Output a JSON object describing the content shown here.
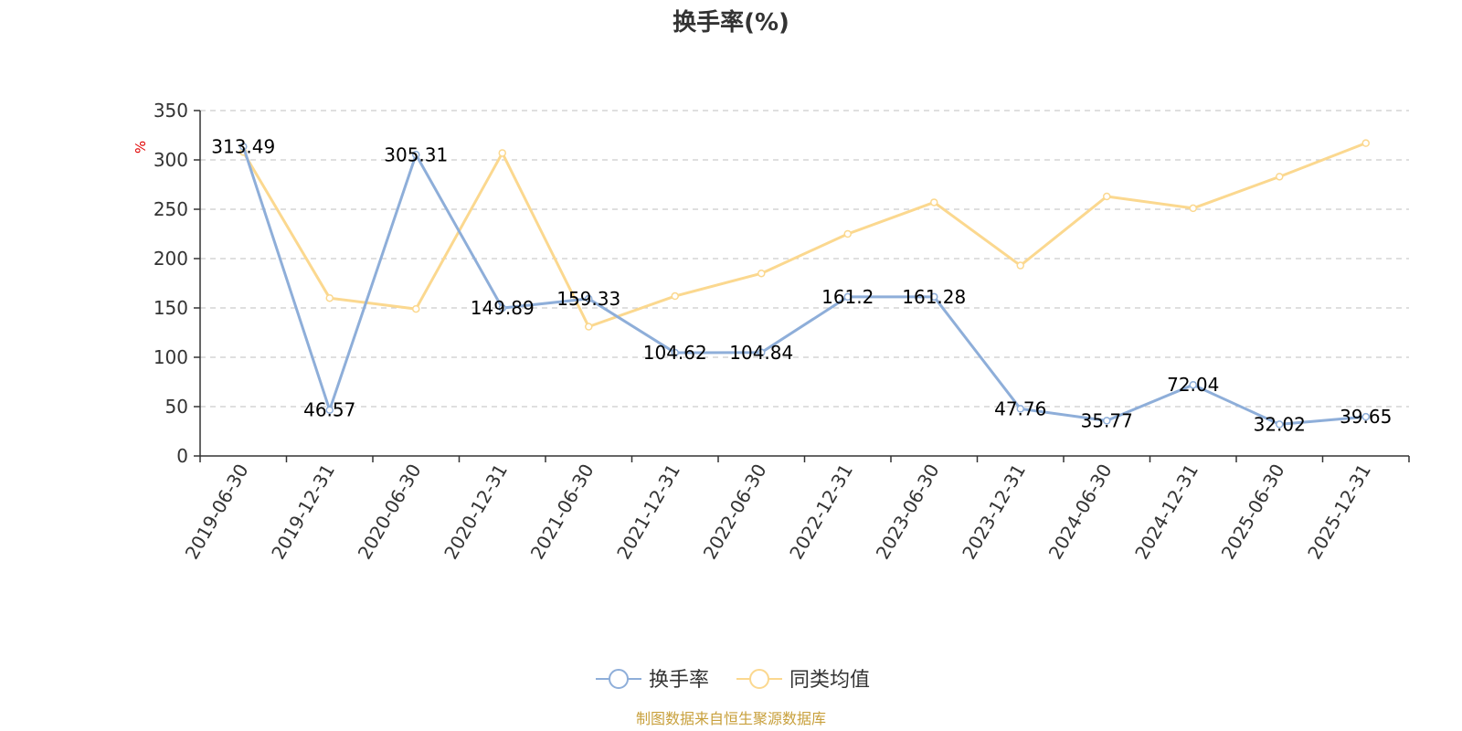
{
  "chart_data": {
    "type": "line",
    "title": "换手率(%)",
    "ylabel": "%",
    "ylim": [
      0,
      350
    ],
    "yticks": [
      0,
      50,
      100,
      150,
      200,
      250,
      300,
      350
    ],
    "grid": true,
    "legend_position": "bottom-center",
    "categories": [
      "2019-06-30",
      "2019-12-31",
      "2020-06-30",
      "2020-12-31",
      "2021-06-30",
      "2021-12-31",
      "2022-06-30",
      "2022-12-31",
      "2023-06-30",
      "2023-12-31",
      "2024-06-30",
      "2024-12-31",
      "2025-06-30",
      "2025-12-31"
    ],
    "series": [
      {
        "name": "换手率",
        "color": "#8eaed9",
        "values": [
          313.49,
          46.57,
          305.31,
          149.89,
          159.33,
          104.62,
          104.84,
          161.2,
          161.28,
          47.76,
          35.77,
          72.04,
          32.02,
          39.65
        ],
        "labels": [
          "313.49",
          "46.57",
          "305.31",
          "149.89",
          "159.33",
          "104.62",
          "104.84",
          "161.2",
          "161.28",
          "47.76",
          "35.77",
          "72.04",
          "32.02",
          "39.65"
        ]
      },
      {
        "name": "同类均值",
        "color": "#fbd88f",
        "values": [
          308,
          160,
          149,
          307,
          131,
          162,
          185,
          225,
          257,
          193,
          263,
          251,
          283,
          317
        ]
      }
    ],
    "source": "制图数据来自恒生聚源数据库"
  }
}
